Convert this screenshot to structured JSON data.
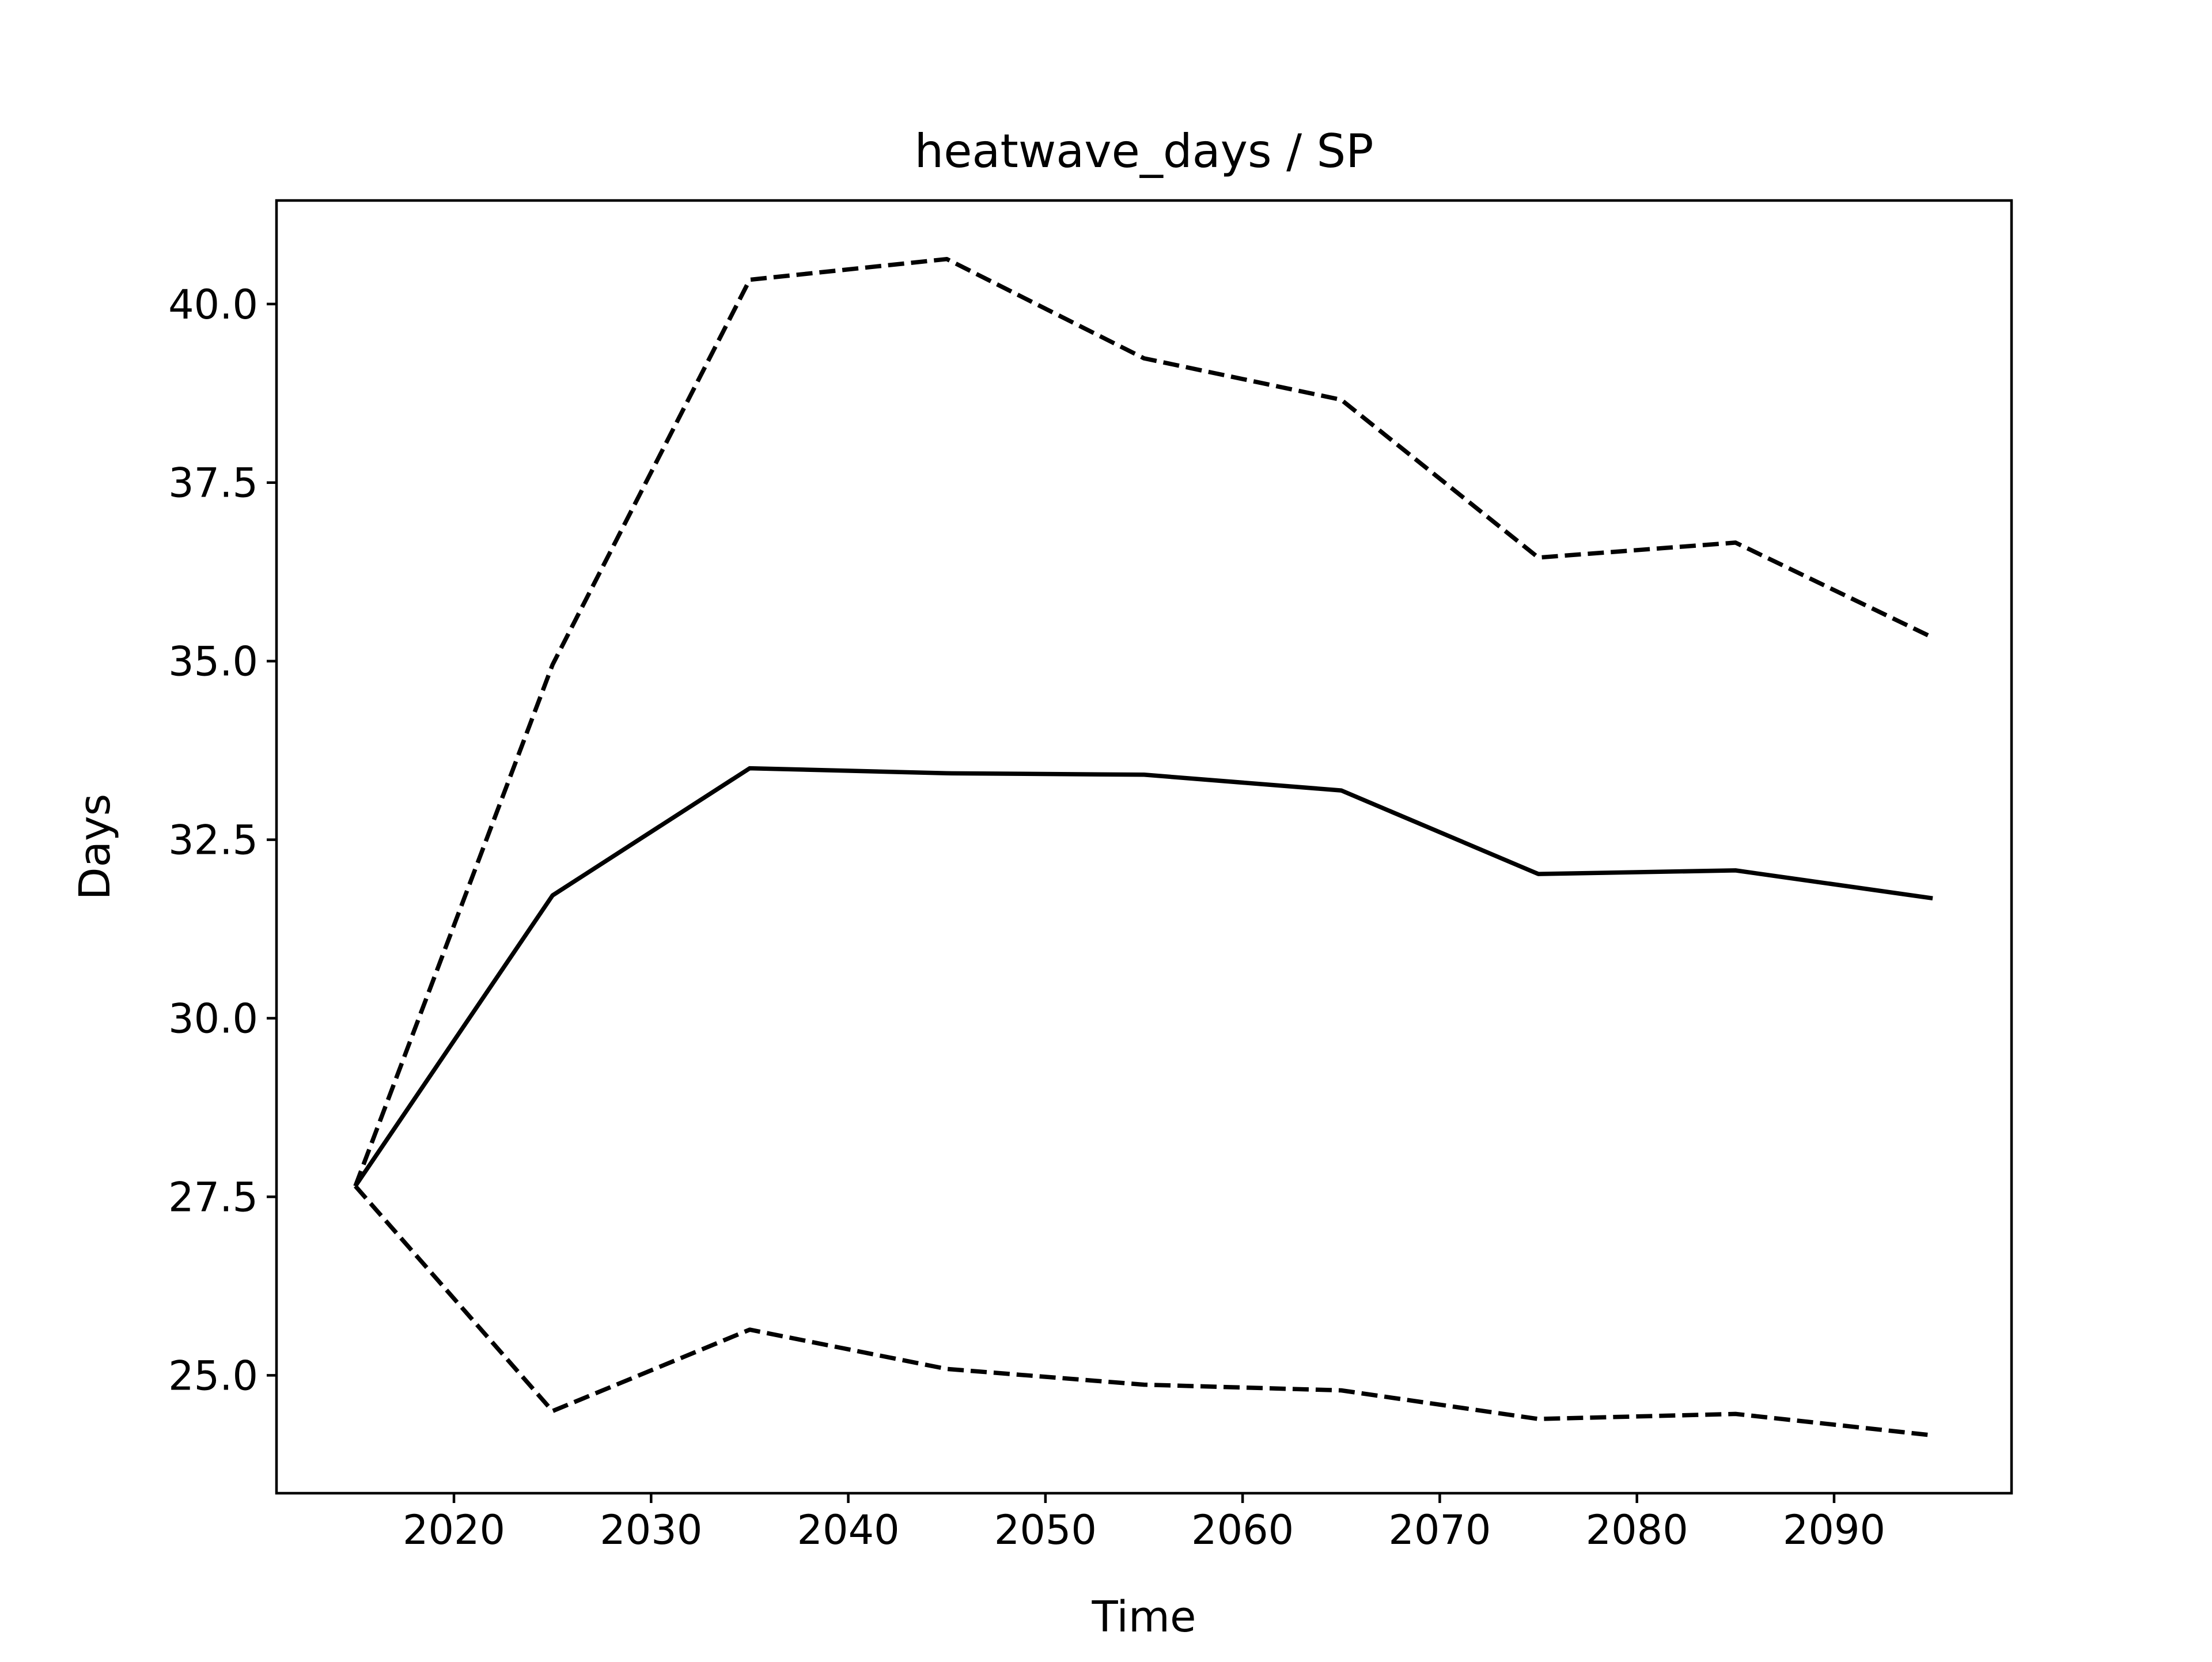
{
  "chart_data": {
    "type": "line",
    "title": "heatwave_days / SP",
    "xlabel": "Time",
    "ylabel": "Days",
    "xlim": [
      2011,
      2099
    ],
    "ylim": [
      23.35,
      41.45
    ],
    "xticks": [
      2020,
      2030,
      2040,
      2050,
      2060,
      2070,
      2080,
      2090
    ],
    "yticks": [
      "25.0",
      "27.5",
      "30.0",
      "32.5",
      "35.0",
      "37.5",
      "40.0"
    ],
    "grid": false,
    "x": [
      2015,
      2025,
      2035,
      2045,
      2055,
      2065,
      2075,
      2085,
      2095
    ],
    "series": [
      {
        "style": "solid",
        "color": "#000000",
        "values": [
          27.65,
          31.72,
          33.5,
          33.43,
          33.41,
          33.19,
          32.02,
          32.07,
          31.68
        ]
      },
      {
        "style": "dashed",
        "color": "#000000",
        "values": [
          27.65,
          34.95,
          40.34,
          40.63,
          39.24,
          38.66,
          36.45,
          36.66,
          35.33
        ]
      },
      {
        "style": "dashed",
        "color": "#000000",
        "values": [
          27.65,
          24.5,
          25.64,
          25.09,
          24.87,
          24.79,
          24.39,
          24.46,
          24.16
        ]
      }
    ]
  }
}
